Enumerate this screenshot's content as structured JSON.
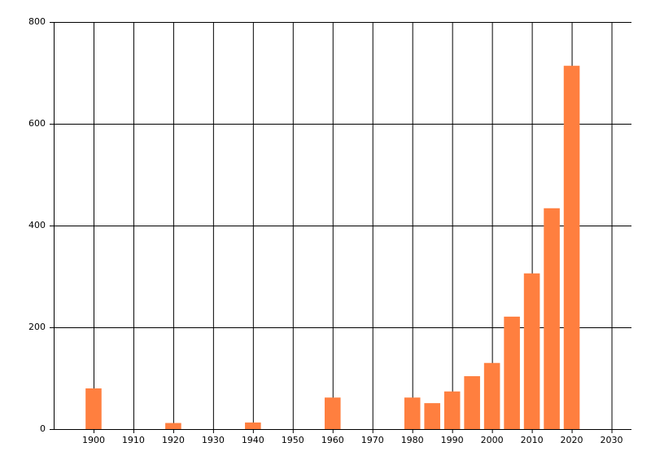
{
  "chart_data": {
    "type": "bar",
    "x": [
      1900,
      1920,
      1940,
      1960,
      1980,
      1985,
      1990,
      1995,
      2000,
      2005,
      2010,
      2015,
      2020
    ],
    "values": [
      80,
      12,
      13,
      62,
      62,
      51,
      74,
      104,
      130,
      221,
      306,
      434,
      714
    ],
    "color": "#ff7f3f",
    "xlim": [
      1890,
      2035
    ],
    "xticks": [
      1900,
      1910,
      1920,
      1930,
      1940,
      1950,
      1960,
      1970,
      1980,
      1990,
      2000,
      2010,
      2020,
      2030
    ],
    "ylim": [
      0,
      800
    ],
    "yticks": [
      0,
      200,
      400,
      600,
      800
    ],
    "grid": true
  }
}
